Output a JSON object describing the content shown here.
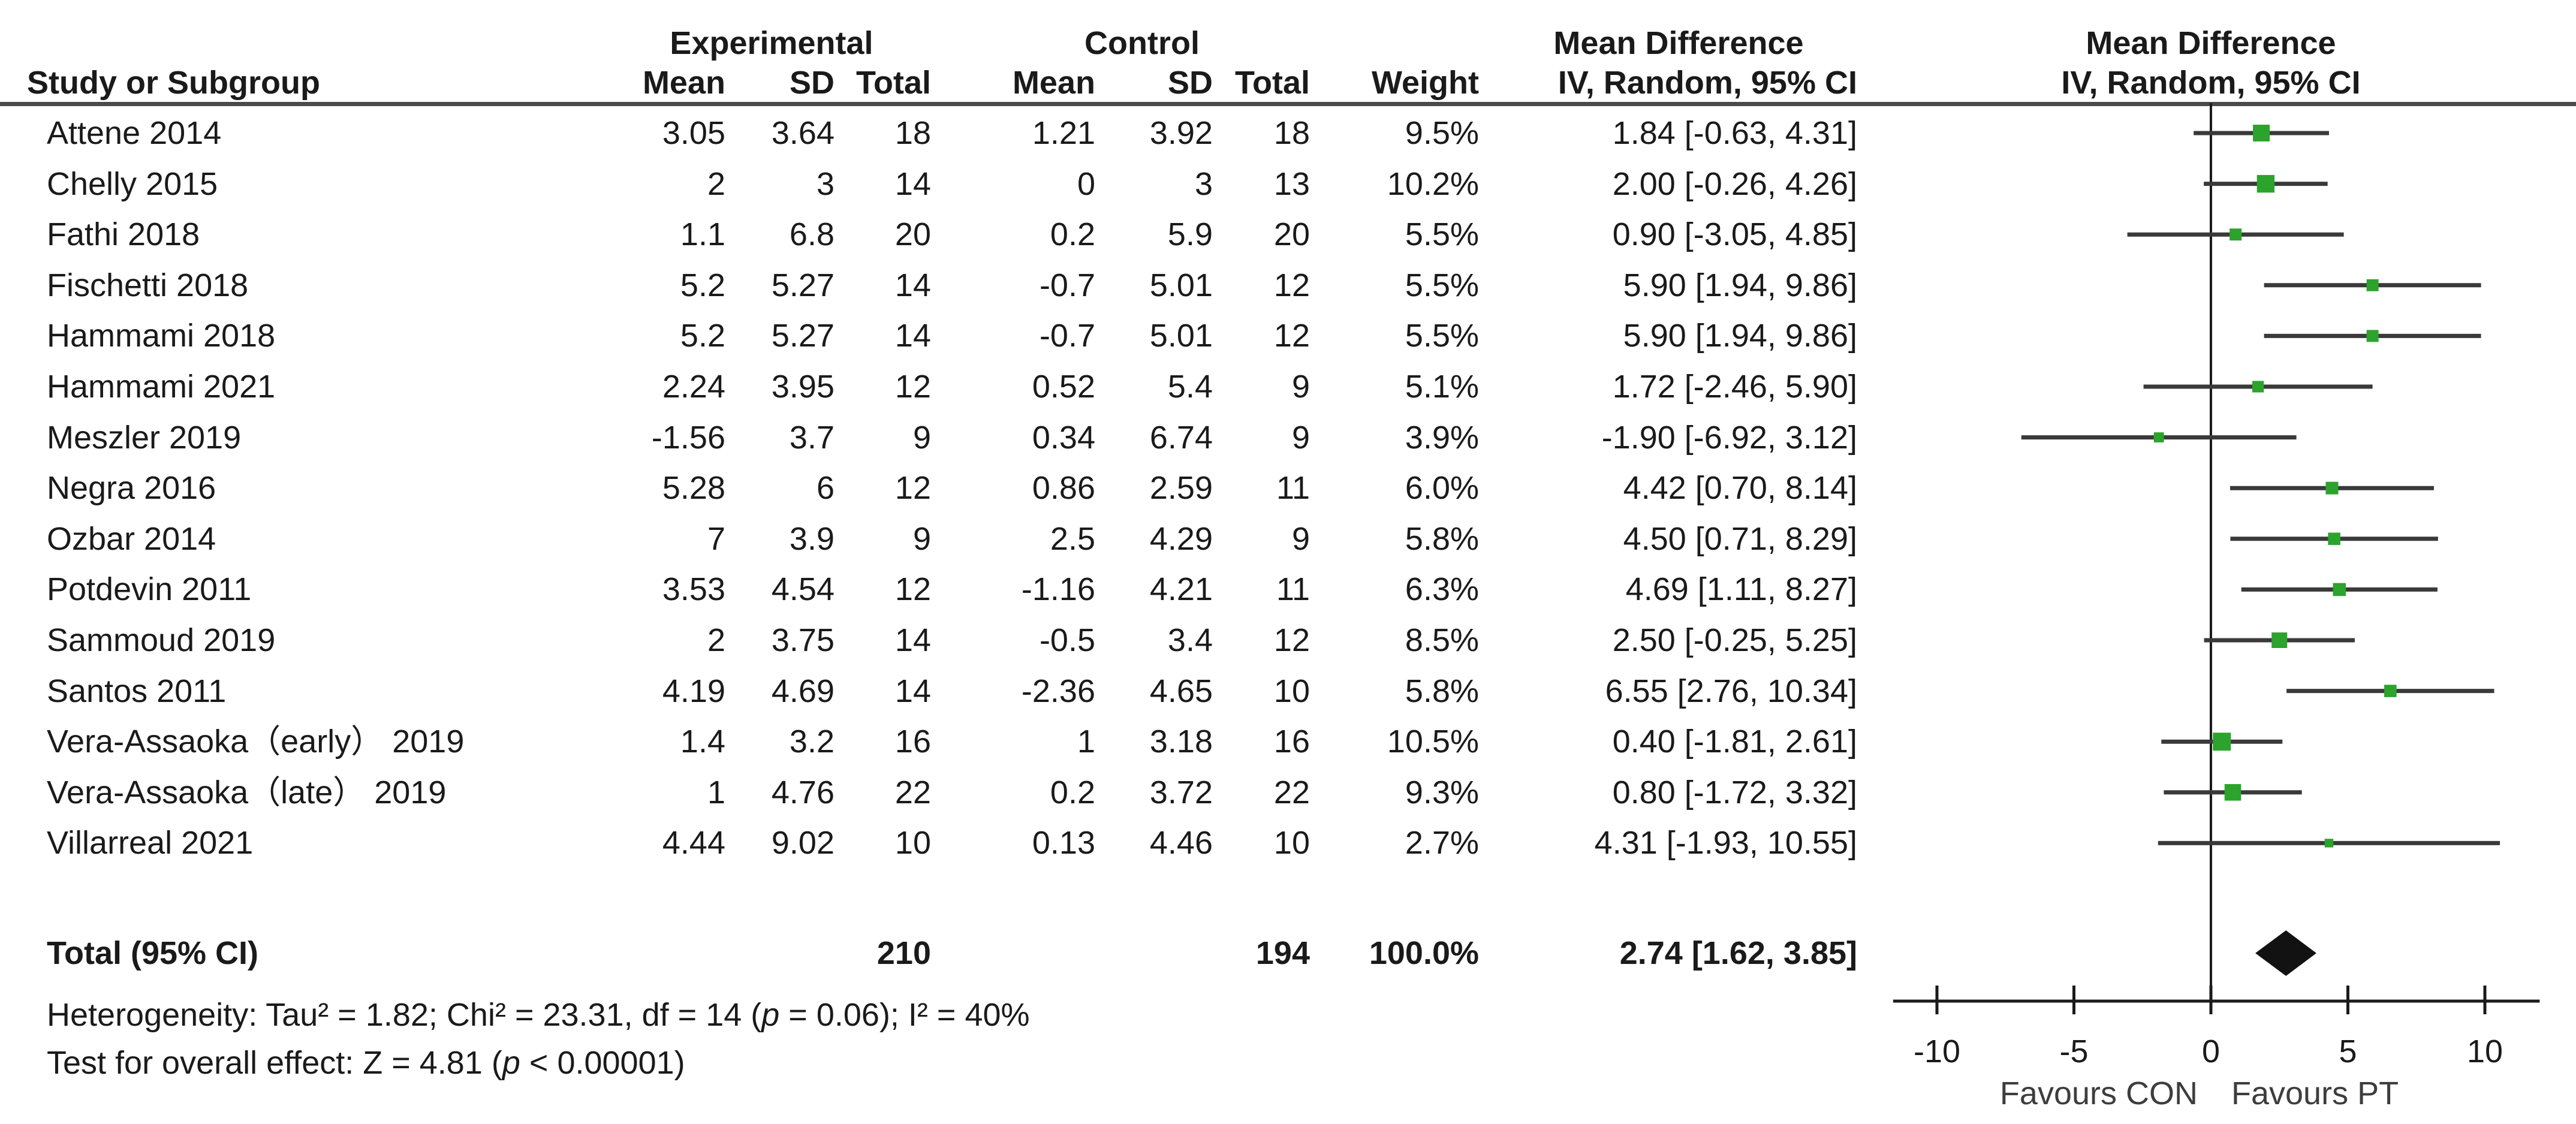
{
  "chart_data": {
    "type": "scatter",
    "subtype": "forest-plot",
    "title": "Meta-analysis forest plot, Mean Difference (IV, Random, 95% CI)",
    "headers": {
      "study": "Study or Subgroup",
      "group_experimental": "Experimental",
      "group_control": "Control",
      "md_text_column": "Mean Difference",
      "md_plot_column": "Mean Difference",
      "mean": "Mean",
      "sd": "SD",
      "total": "Total",
      "weight": "Weight",
      "iv_random_text": "IV, Random, 95% CI",
      "iv_random_plot": "IV, Random, 95% CI"
    },
    "studies": [
      {
        "name": "Attene 2014",
        "mean_e": "3.05",
        "sd_e": "3.64",
        "n_e": "18",
        "mean_c": "1.21",
        "sd_c": "3.92",
        "n_c": "18",
        "weight": "9.5%",
        "weight_value": 9.5,
        "ci_label": "1.84 [-0.63, 4.31]",
        "md": 1.84,
        "ci_low": -0.63,
        "ci_high": 4.31
      },
      {
        "name": "Chelly 2015",
        "mean_e": "2",
        "sd_e": "3",
        "n_e": "14",
        "mean_c": "0",
        "sd_c": "3",
        "n_c": "13",
        "weight": "10.2%",
        "weight_value": 10.2,
        "ci_label": "2.00 [-0.26, 4.26]",
        "md": 2.0,
        "ci_low": -0.26,
        "ci_high": 4.26
      },
      {
        "name": "Fathi 2018",
        "mean_e": "1.1",
        "sd_e": "6.8",
        "n_e": "20",
        "mean_c": "0.2",
        "sd_c": "5.9",
        "n_c": "20",
        "weight": "5.5%",
        "weight_value": 5.5,
        "ci_label": "0.90 [-3.05, 4.85]",
        "md": 0.9,
        "ci_low": -3.05,
        "ci_high": 4.85
      },
      {
        "name": "Fischetti 2018",
        "mean_e": "5.2",
        "sd_e": "5.27",
        "n_e": "14",
        "mean_c": "-0.7",
        "sd_c": "5.01",
        "n_c": "12",
        "weight": "5.5%",
        "weight_value": 5.5,
        "ci_label": "5.90 [1.94, 9.86]",
        "md": 5.9,
        "ci_low": 1.94,
        "ci_high": 9.86
      },
      {
        "name": "Hammami 2018",
        "mean_e": "5.2",
        "sd_e": "5.27",
        "n_e": "14",
        "mean_c": "-0.7",
        "sd_c": "5.01",
        "n_c": "12",
        "weight": "5.5%",
        "weight_value": 5.5,
        "ci_label": "5.90 [1.94, 9.86]",
        "md": 5.9,
        "ci_low": 1.94,
        "ci_high": 9.86
      },
      {
        "name": "Hammami 2021",
        "mean_e": "2.24",
        "sd_e": "3.95",
        "n_e": "12",
        "mean_c": "0.52",
        "sd_c": "5.4",
        "n_c": "9",
        "weight": "5.1%",
        "weight_value": 5.1,
        "ci_label": "1.72 [-2.46, 5.90]",
        "md": 1.72,
        "ci_low": -2.46,
        "ci_high": 5.9
      },
      {
        "name": "Meszler 2019",
        "mean_e": "-1.56",
        "sd_e": "3.7",
        "n_e": "9",
        "mean_c": "0.34",
        "sd_c": "6.74",
        "n_c": "9",
        "weight": "3.9%",
        "weight_value": 3.9,
        "ci_label": "-1.90 [-6.92, 3.12]",
        "md": -1.9,
        "ci_low": -6.92,
        "ci_high": 3.12
      },
      {
        "name": "Negra 2016",
        "mean_e": "5.28",
        "sd_e": "6",
        "n_e": "12",
        "mean_c": "0.86",
        "sd_c": "2.59",
        "n_c": "11",
        "weight": "6.0%",
        "weight_value": 6.0,
        "ci_label": "4.42 [0.70, 8.14]",
        "md": 4.42,
        "ci_low": 0.7,
        "ci_high": 8.14
      },
      {
        "name": "Ozbar 2014",
        "mean_e": "7",
        "sd_e": "3.9",
        "n_e": "9",
        "mean_c": "2.5",
        "sd_c": "4.29",
        "n_c": "9",
        "weight": "5.8%",
        "weight_value": 5.8,
        "ci_label": "4.50 [0.71, 8.29]",
        "md": 4.5,
        "ci_low": 0.71,
        "ci_high": 8.29
      },
      {
        "name": "Potdevin 2011",
        "mean_e": "3.53",
        "sd_e": "4.54",
        "n_e": "12",
        "mean_c": "-1.16",
        "sd_c": "4.21",
        "n_c": "11",
        "weight": "6.3%",
        "weight_value": 6.3,
        "ci_label": "4.69 [1.11, 8.27]",
        "md": 4.69,
        "ci_low": 1.11,
        "ci_high": 8.27
      },
      {
        "name": "Sammoud 2019",
        "mean_e": "2",
        "sd_e": "3.75",
        "n_e": "14",
        "mean_c": "-0.5",
        "sd_c": "3.4",
        "n_c": "12",
        "weight": "8.5%",
        "weight_value": 8.5,
        "ci_label": "2.50 [-0.25, 5.25]",
        "md": 2.5,
        "ci_low": -0.25,
        "ci_high": 5.25
      },
      {
        "name": "Santos 2011",
        "mean_e": "4.19",
        "sd_e": "4.69",
        "n_e": "14",
        "mean_c": "-2.36",
        "sd_c": "4.65",
        "n_c": "10",
        "weight": "5.8%",
        "weight_value": 5.8,
        "ci_label": "6.55 [2.76, 10.34]",
        "md": 6.55,
        "ci_low": 2.76,
        "ci_high": 10.34
      },
      {
        "name": "Vera-Assaoka（early） 2019",
        "mean_e": "1.4",
        "sd_e": "3.2",
        "n_e": "16",
        "mean_c": "1",
        "sd_c": "3.18",
        "n_c": "16",
        "weight": "10.5%",
        "weight_value": 10.5,
        "ci_label": "0.40 [-1.81, 2.61]",
        "md": 0.4,
        "ci_low": -1.81,
        "ci_high": 2.61
      },
      {
        "name": "Vera-Assaoka（late） 2019",
        "mean_e": "1",
        "sd_e": "4.76",
        "n_e": "22",
        "mean_c": "0.2",
        "sd_c": "3.72",
        "n_c": "22",
        "weight": "9.3%",
        "weight_value": 9.3,
        "ci_label": "0.80 [-1.72, 3.32]",
        "md": 0.8,
        "ci_low": -1.72,
        "ci_high": 3.32
      },
      {
        "name": "Villarreal 2021",
        "mean_e": "4.44",
        "sd_e": "9.02",
        "n_e": "10",
        "mean_c": "0.13",
        "sd_c": "4.46",
        "n_c": "10",
        "weight": "2.7%",
        "weight_value": 2.7,
        "ci_label": "4.31 [-1.93, 10.55]",
        "md": 4.31,
        "ci_low": -1.93,
        "ci_high": 10.55
      }
    ],
    "total": {
      "label": "Total (95% CI)",
      "n_e": "210",
      "n_c": "194",
      "weight": "100.0%",
      "ci_label": "2.74 [1.62, 3.85]",
      "md": 2.74,
      "ci_low": 1.62,
      "ci_high": 3.85
    },
    "heterogeneity": [
      "Heterogeneity: Tau² = 1.82; Chi² = 23.31, df = 14 (",
      "p",
      " = 0.06); I² = 40%"
    ],
    "overall_test": [
      "Test for overall effect: Z = 4.81 (",
      "p",
      " < 0.00001)"
    ],
    "axis": {
      "ticks": [
        -10,
        -5,
        0,
        5,
        10
      ],
      "min": -11.6,
      "max": 12.0,
      "favours_left": "Favours CON",
      "favours_right": "Favours PT",
      "grid": false
    },
    "colors": {
      "marker_green": "#2CA32C",
      "ci_line": "#3a3a3a",
      "diamond": "#121212",
      "axis": "#1a1a1a",
      "rule": "#4a4a4a",
      "text": "#1a1a1a",
      "favours_text": "#3d3d3d"
    }
  }
}
